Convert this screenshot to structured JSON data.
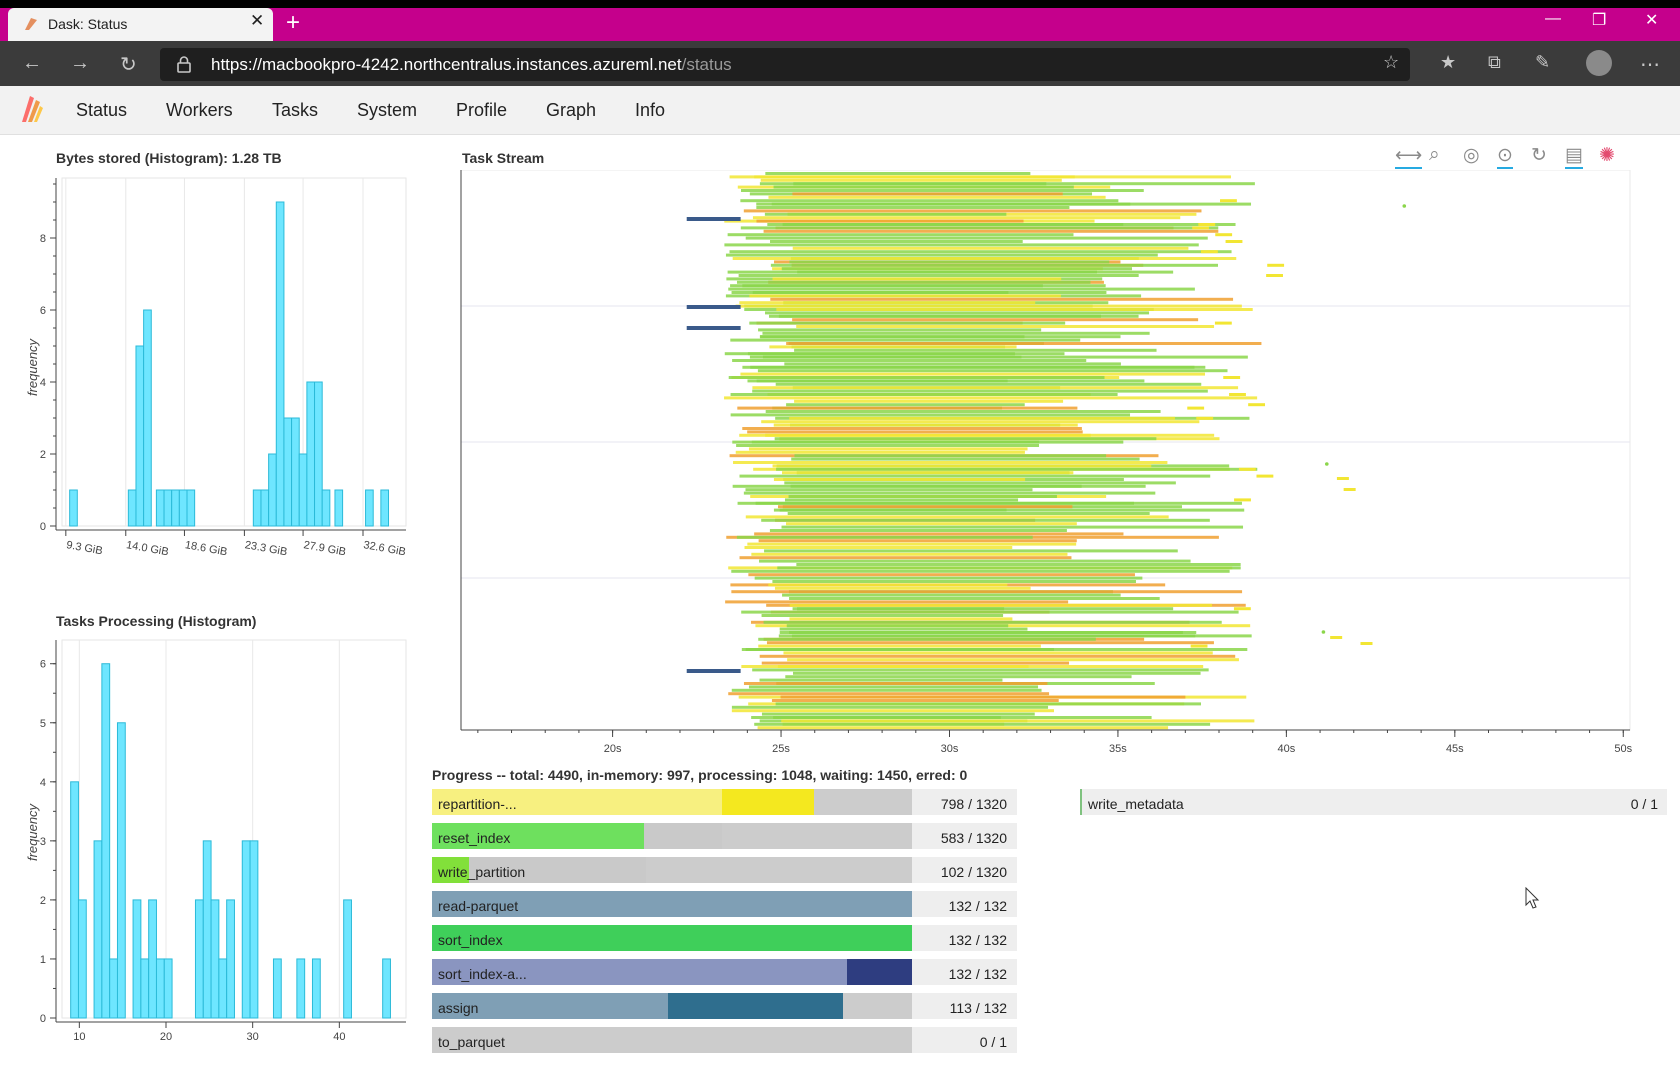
{
  "browser": {
    "tab_title": "Dask: Status",
    "url_host": "https://macbookpro-4242.northcentralus.instances.azureml.net",
    "url_path": "/status",
    "win_minimize": "—",
    "win_restore": "❐",
    "win_close": "✕",
    "new_tab": "+",
    "tab_close": "✕"
  },
  "nav": {
    "items": [
      "Status",
      "Workers",
      "Tasks",
      "System",
      "Profile",
      "Graph",
      "Info"
    ]
  },
  "bytes_hist": {
    "title": "Bytes stored (Histogram): 1.28 TB",
    "ylabel": "frequency"
  },
  "tasks_hist": {
    "title": "Tasks Processing (Histogram)",
    "ylabel": "frequency"
  },
  "task_stream": {
    "title": "Task Stream"
  },
  "chart_data": [
    {
      "type": "bar",
      "title": "Bytes stored (Histogram): 1.28 TB",
      "ylabel": "frequency",
      "xlabel": "",
      "x_tick_labels": [
        "9.3 GiB",
        "14.0 GiB",
        "18.6 GiB",
        "23.3 GiB",
        "27.9 GiB",
        "32.6 GiB"
      ],
      "x_ticks_gib": [
        9.3,
        14.0,
        18.6,
        23.3,
        27.9,
        32.6
      ],
      "y_ticks": [
        0,
        2,
        4,
        6,
        8
      ],
      "ylim": [
        0,
        9.5
      ],
      "xlim_gib": [
        9.0,
        35.5
      ],
      "bin_width_gib": 0.6,
      "bins_start_gib": [
        9.6,
        14.2,
        14.8,
        15.4,
        16.4,
        17.0,
        17.6,
        18.2,
        18.8,
        24.0,
        24.6,
        25.2,
        25.8,
        26.4,
        27.0,
        27.6,
        28.2,
        28.8,
        29.4,
        30.4,
        32.8,
        34.0
      ],
      "values": [
        1,
        1,
        5,
        6,
        1,
        1,
        1,
        1,
        1,
        1,
        1,
        2,
        9,
        3,
        3,
        2,
        4,
        4,
        1,
        1,
        1,
        1
      ]
    },
    {
      "type": "bar",
      "title": "Tasks Processing (Histogram)",
      "ylabel": "frequency",
      "xlabel": "",
      "x_ticks": [
        10,
        20,
        30,
        40
      ],
      "y_ticks": [
        0,
        1,
        2,
        3,
        4,
        5,
        6
      ],
      "ylim": [
        0,
        6.3
      ],
      "xlim": [
        8,
        47
      ],
      "bin_width": 0.9,
      "bins_start": [
        9.0,
        9.9,
        11.7,
        12.6,
        13.5,
        14.4,
        16.2,
        17.1,
        18.0,
        18.9,
        19.8,
        23.4,
        24.3,
        25.2,
        26.1,
        27.0,
        28.8,
        29.7,
        32.4,
        35.1,
        36.9,
        40.5,
        45.0
      ],
      "values": [
        4,
        2,
        3,
        6,
        1,
        5,
        2,
        1,
        2,
        1,
        1,
        2,
        3,
        2,
        1,
        2,
        3,
        3,
        1,
        1,
        1,
        2,
        1
      ]
    },
    {
      "type": "timeline",
      "title": "Task Stream",
      "x_tick_labels": [
        "20s",
        "25s",
        "30s",
        "35s",
        "40s",
        "45s",
        "50s"
      ],
      "x_ticks": [
        20,
        25,
        30,
        35,
        40,
        45,
        50
      ],
      "xlim": [
        15.5,
        50.2
      ],
      "series": [
        {
          "name": "repartition",
          "color": "#f2e633"
        },
        {
          "name": "reset_index",
          "color": "#8bd64a"
        },
        {
          "name": "write_partition",
          "color": "#f0a030"
        },
        {
          "name": "read-parquet",
          "color": "#3a5a8a"
        }
      ],
      "toolbar": [
        "pan-icon",
        "box-zoom-icon",
        "wheel-zoom-icon",
        "tap-icon",
        "reset-icon",
        "hover-icon",
        "bokeh-logo-icon"
      ]
    }
  ],
  "progress": {
    "summary": "Progress -- total: 4490, in-memory: 997, processing: 1048, waiting: 1450, erred: 0",
    "rows": [
      {
        "label": "repartition-...",
        "count": "798 / 1320",
        "done": 798,
        "processing": 252,
        "total": 1320,
        "color": "#f7f080",
        "proc_color": "#f4e81f"
      },
      {
        "label": "reset_index",
        "count": "583 / 1320",
        "done": 583,
        "processing": 214,
        "total": 1320,
        "color": "#6ee05e",
        "proc_color": "#c9c9c9"
      },
      {
        "label": "write_partition",
        "count": "102 / 1320",
        "done": 102,
        "processing": 487,
        "total": 1320,
        "color": "#82e03a",
        "proc_color": "#c9c9c9"
      },
      {
        "label": "read-parquet",
        "count": "132 / 132",
        "done": 132,
        "processing": 0,
        "total": 132,
        "color": "#7f9fb5",
        "proc_color": "#7f9fb5"
      },
      {
        "label": "sort_index",
        "count": "132 / 132",
        "done": 132,
        "processing": 0,
        "total": 132,
        "color": "#3fcf5a",
        "proc_color": "#3fcf5a"
      },
      {
        "label": "sort_index-a...",
        "count": "132 / 132",
        "done": 114,
        "processing": 18,
        "total": 132,
        "color": "#8a95c0",
        "proc_color": "#2e3d80"
      },
      {
        "label": "assign",
        "count": "113 / 132",
        "done": 65,
        "processing": 48,
        "total": 132,
        "color": "#7f9fb5",
        "proc_color": "#2f6e8e"
      },
      {
        "label": "to_parquet",
        "count": "0 / 1",
        "done": 0,
        "processing": 0,
        "total": 1,
        "color": "#cccccc",
        "proc_color": "#cccccc"
      }
    ],
    "right_rows": [
      {
        "label": "write_metadata",
        "count": "0 / 1",
        "done": 0,
        "total": 1
      }
    ]
  }
}
